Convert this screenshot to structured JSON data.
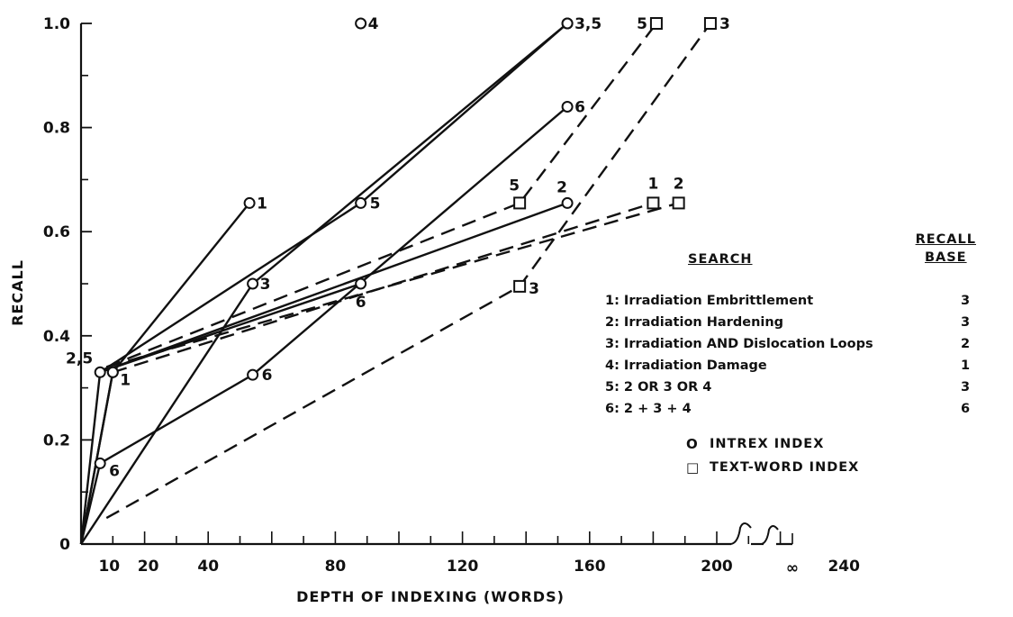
{
  "chart_data": {
    "type": "line",
    "xlabel": "DEPTH OF INDEXING (WORDS)",
    "ylabel": "RECALL",
    "xlim": [
      0,
      245
    ],
    "ylim": [
      0,
      1.0
    ],
    "x_tick_labels": [
      "10",
      "20",
      "40",
      "80",
      "120",
      "160",
      "200",
      "240",
      "∞"
    ],
    "y_tick_labels": [
      "0",
      "0.2",
      "0.4",
      "0.6",
      "0.8",
      "1.0"
    ],
    "series": [
      {
        "id": "intrex-1",
        "index": "INTREX INDEX",
        "style": "solid",
        "marker": "circle",
        "points": [
          {
            "x": 0,
            "y": 0
          },
          {
            "x": 10,
            "y": 0.33
          },
          {
            "x": 53,
            "y": 0.655,
            "label": "1"
          }
        ]
      },
      {
        "id": "intrex-1b",
        "index": "INTREX INDEX",
        "style": "solid",
        "marker": "circle",
        "points": [
          {
            "x": 0,
            "y": 0
          },
          {
            "x": 10,
            "y": 0.33,
            "label": "1"
          }
        ]
      },
      {
        "id": "intrex-2",
        "index": "INTREX INDEX",
        "style": "solid",
        "marker": "circle",
        "points": [
          {
            "x": 0,
            "y": 0
          },
          {
            "x": 6,
            "y": 0.33,
            "label": "2,5"
          },
          {
            "x": 153,
            "y": 0.655,
            "label": "2"
          }
        ]
      },
      {
        "id": "intrex-3",
        "index": "INTREX INDEX",
        "style": "solid",
        "marker": "circle",
        "points": [
          {
            "x": 0,
            "y": 0
          },
          {
            "x": 54,
            "y": 0.5,
            "label": "3"
          },
          {
            "x": 153,
            "y": 1.0,
            "label": "3,5"
          }
        ]
      },
      {
        "id": "intrex-4",
        "index": "INTREX INDEX",
        "style": "none",
        "marker": "circle",
        "points": [
          {
            "x": 88,
            "y": 1.0,
            "label": "4"
          }
        ]
      },
      {
        "id": "intrex-5",
        "index": "INTREX INDEX",
        "style": "solid",
        "marker": "circle",
        "points": [
          {
            "x": 6,
            "y": 0.33
          },
          {
            "x": 88,
            "y": 0.655,
            "label": "5"
          },
          {
            "x": 153,
            "y": 1.0
          }
        ]
      },
      {
        "id": "intrex-6",
        "index": "INTREX INDEX",
        "style": "solid",
        "marker": "circle",
        "points": [
          {
            "x": 0,
            "y": 0
          },
          {
            "x": 6,
            "y": 0.155,
            "label": "6"
          },
          {
            "x": 54,
            "y": 0.325,
            "label": "6"
          },
          {
            "x": 153,
            "y": 0.84,
            "label": "6"
          }
        ]
      },
      {
        "id": "intrex-6b",
        "index": "INTREX INDEX",
        "style": "solid",
        "marker": "circle",
        "points": [
          {
            "x": 6,
            "y": 0.33
          },
          {
            "x": 88,
            "y": 0.5,
            "label": "6"
          }
        ]
      },
      {
        "id": "text-1",
        "index": "TEXT-WORD INDEX",
        "style": "dashed",
        "marker": "square",
        "points": [
          {
            "x": 10,
            "y": 0.33
          },
          {
            "x": 180,
            "y": 0.655,
            "label": "1"
          }
        ]
      },
      {
        "id": "text-2",
        "index": "TEXT-WORD INDEX",
        "style": "dashed",
        "marker": "square",
        "points": [
          {
            "x": 8,
            "y": 0.34
          },
          {
            "x": 188,
            "y": 0.655,
            "label": "2"
          }
        ]
      },
      {
        "id": "text-3",
        "index": "TEXT-WORD INDEX",
        "style": "dashed",
        "marker": "square",
        "points": [
          {
            "x": 8,
            "y": 0.05
          },
          {
            "x": 138,
            "y": 0.495,
            "label": "3"
          },
          {
            "x": 198,
            "y": 1.0,
            "label": "3"
          }
        ]
      },
      {
        "id": "text-5",
        "index": "TEXT-WORD INDEX",
        "style": "dashed",
        "marker": "square",
        "points": [
          {
            "x": 8,
            "y": 0.34
          },
          {
            "x": 138,
            "y": 0.655,
            "label": "5"
          },
          {
            "x": 181,
            "y": 1.0,
            "label": "5"
          }
        ]
      }
    ]
  },
  "legend": {
    "search_header": "SEARCH",
    "recall_base_header_1": "RECALL",
    "recall_base_header_2": "BASE",
    "rows": [
      {
        "label": "1: Irradiation Embrittlement",
        "base": "3"
      },
      {
        "label": "2: Irradiation Hardening",
        "base": "3"
      },
      {
        "label": "3: Irradiation AND Dislocation Loops",
        "base": "2"
      },
      {
        "label": "4: Irradiation Damage",
        "base": "1"
      },
      {
        "label": "5: 2 OR 3 OR 4",
        "base": "3"
      },
      {
        "label": "6: 2 + 3 + 4",
        "base": "6"
      }
    ],
    "markers": [
      {
        "symbol": "O",
        "label": "INTREX INDEX"
      },
      {
        "symbol": "□",
        "label": "TEXT-WORD INDEX"
      }
    ]
  }
}
